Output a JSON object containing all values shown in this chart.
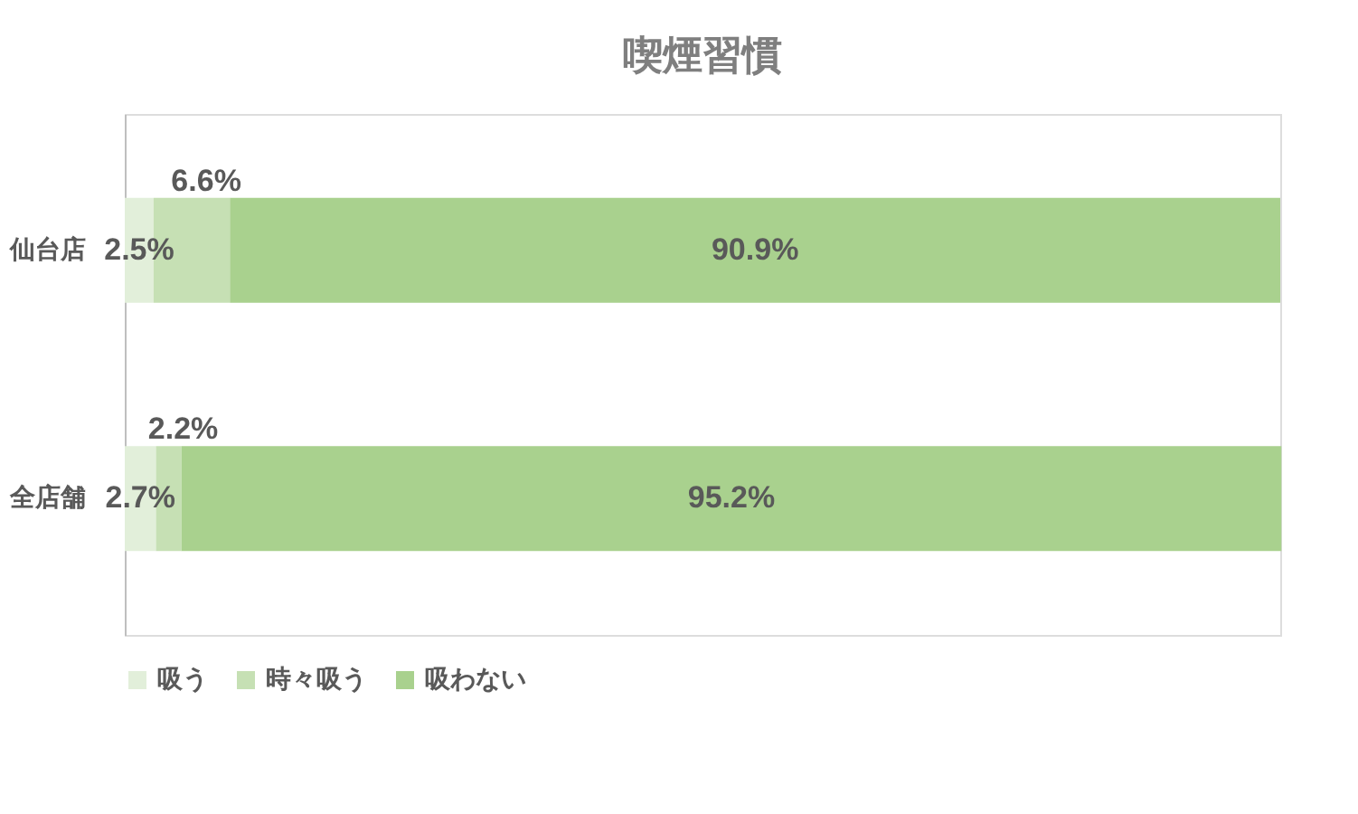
{
  "chart_data": {
    "type": "bar",
    "orientation": "horizontal",
    "stacked": true,
    "title": "喫煙習慣",
    "categories": [
      "仙台店",
      "全店舗"
    ],
    "series": [
      {
        "name": "吸う",
        "color": "#e2efda",
        "values": [
          2.5,
          2.7
        ],
        "value_labels": [
          "2.5%",
          "2.7%"
        ]
      },
      {
        "name": "時々吸う",
        "color": "#c6e0b4",
        "values": [
          6.6,
          2.2
        ],
        "value_labels": [
          "6.6%",
          "2.2%"
        ]
      },
      {
        "name": "吸わない",
        "color": "#a9d18e",
        "values": [
          90.9,
          95.2
        ],
        "value_labels": [
          "90.9%",
          "95.2%"
        ]
      }
    ],
    "xlim": [
      0,
      100
    ],
    "tick_labels": "y",
    "grid": false,
    "legend": "bottom"
  }
}
